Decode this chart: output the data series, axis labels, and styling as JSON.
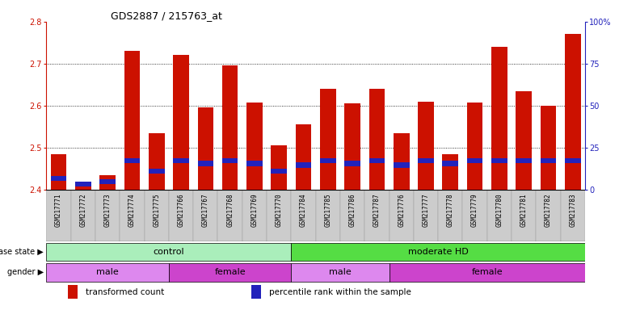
{
  "title": "GDS2887 / 215763_at",
  "samples": [
    "GSM217771",
    "GSM217772",
    "GSM217773",
    "GSM217774",
    "GSM217775",
    "GSM217766",
    "GSM217767",
    "GSM217768",
    "GSM217769",
    "GSM217770",
    "GSM217784",
    "GSM217785",
    "GSM217786",
    "GSM217787",
    "GSM217776",
    "GSM217777",
    "GSM217778",
    "GSM217779",
    "GSM217780",
    "GSM217781",
    "GSM217782",
    "GSM217783"
  ],
  "transformed_count": [
    2.485,
    2.415,
    2.435,
    2.73,
    2.535,
    2.72,
    2.595,
    2.695,
    2.608,
    2.505,
    2.555,
    2.64,
    2.605,
    2.64,
    2.535,
    2.61,
    2.485,
    2.608,
    2.74,
    2.635,
    2.6,
    2.77
  ],
  "blue_marker_pos": [
    2.427,
    2.413,
    2.418,
    2.468,
    2.443,
    2.468,
    2.462,
    2.468,
    2.462,
    2.443,
    2.458,
    2.468,
    2.462,
    2.468,
    2.458,
    2.468,
    2.462,
    2.468,
    2.468,
    2.468,
    2.468,
    2.468
  ],
  "ylim_left": [
    2.4,
    2.8
  ],
  "ylim_right": [
    0,
    100
  ],
  "yticks_left": [
    2.4,
    2.5,
    2.6,
    2.7,
    2.8
  ],
  "yticks_right": [
    0,
    25,
    50,
    75,
    100
  ],
  "bar_color": "#cc1100",
  "marker_color": "#2222bb",
  "bar_width": 0.65,
  "disease_groups": [
    {
      "label": "control",
      "start": 0,
      "end": 10,
      "color": "#aaeebb"
    },
    {
      "label": "moderate HD",
      "start": 10,
      "end": 22,
      "color": "#55dd44"
    }
  ],
  "gender_groups": [
    {
      "label": "male",
      "start": 0,
      "end": 5,
      "color": "#dd88ee"
    },
    {
      "label": "female",
      "start": 5,
      "end": 10,
      "color": "#cc44cc"
    },
    {
      "label": "male",
      "start": 10,
      "end": 14,
      "color": "#dd88ee"
    },
    {
      "label": "female",
      "start": 14,
      "end": 22,
      "color": "#cc44cc"
    }
  ],
  "disease_label": "disease state",
  "gender_label": "gender",
  "legend_items": [
    {
      "label": "transformed count",
      "color": "#cc1100"
    },
    {
      "label": "percentile rank within the sample",
      "color": "#2222bb"
    }
  ],
  "base_value": 2.4,
  "background_color": "#ffffff",
  "tick_bg_color": "#cccccc",
  "grid_color": "#000000",
  "grid_lines": [
    2.5,
    2.6,
    2.7
  ]
}
